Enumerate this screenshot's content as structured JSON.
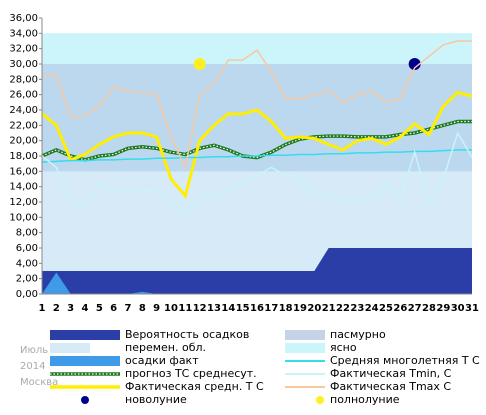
{
  "chart_data": {
    "type": "line",
    "categories": [
      "1",
      "2",
      "3",
      "4",
      "5",
      "6",
      "7",
      "8",
      "9",
      "10",
      "11",
      "12",
      "13",
      "14",
      "15",
      "16",
      "17",
      "18",
      "19",
      "20",
      "21",
      "22",
      "23",
      "24",
      "25",
      "26",
      "27",
      "28",
      "29",
      "30",
      "31"
    ],
    "ylim": [
      0,
      36
    ],
    "yticks": [
      {
        "value": 0,
        "label": "0,00"
      },
      {
        "value": 2,
        "label": "2,00"
      },
      {
        "value": 4,
        "label": "4,00"
      },
      {
        "value": 6,
        "label": "6,00"
      },
      {
        "value": 8,
        "label": "8,00"
      },
      {
        "value": 10,
        "label": "10,00"
      },
      {
        "value": 12,
        "label": "12,00"
      },
      {
        "value": 14,
        "label": "14,00"
      },
      {
        "value": 16,
        "label": "16,00"
      },
      {
        "value": 18,
        "label": "18,00"
      },
      {
        "value": 20,
        "label": "20,00"
      },
      {
        "value": 22,
        "label": "22,00"
      },
      {
        "value": 24,
        "label": "24,00"
      },
      {
        "value": 26,
        "label": "26,00"
      },
      {
        "value": 28,
        "label": "28,00"
      },
      {
        "value": 30,
        "label": "30,00"
      },
      {
        "value": 32,
        "label": "32,00"
      },
      {
        "value": 34,
        "label": "34,00"
      },
      {
        "value": 36,
        "label": "36,00"
      }
    ],
    "month": "Июль",
    "year": "2014",
    "city": "Москва",
    "backgrounds": [
      {
        "name": "пасмурно",
        "color": "#c4d3e8"
      },
      {
        "name": "перемен. обл.",
        "color": "#d6eaf8"
      },
      {
        "name": "ясно",
        "color": "#ccf5fb"
      }
    ],
    "series": [
      {
        "name": "Вероятность осадков",
        "kind": "area",
        "color": "#2b3ea8",
        "values": [
          3,
          3,
          3,
          3,
          3,
          3,
          3,
          3,
          3,
          3,
          3,
          3,
          3,
          3,
          3,
          3,
          3,
          3,
          3,
          3,
          6,
          6,
          6,
          6,
          6,
          6,
          6,
          6,
          6,
          6,
          6
        ]
      },
      {
        "name": "осадки факт",
        "kind": "area",
        "color": "#3f9be8",
        "values": [
          0,
          2.8,
          0,
          0,
          0,
          0,
          0,
          0.3,
          0,
          0,
          0,
          0,
          0,
          0,
          0,
          0,
          0,
          0,
          0,
          0,
          0,
          0,
          0,
          0,
          0,
          0,
          0,
          0,
          0,
          0,
          0
        ]
      },
      {
        "name": "прогноз ТС среднесут.",
        "kind": "dotted",
        "color": "#1e7a1e",
        "values": [
          18,
          18.8,
          18,
          17.5,
          18,
          18.2,
          19,
          19.2,
          19,
          18.5,
          18.2,
          19,
          19.4,
          18.8,
          18,
          17.8,
          18.5,
          19.5,
          20.2,
          20.5,
          20.6,
          20.6,
          20.5,
          20.5,
          20.5,
          20.8,
          21,
          21.5,
          22,
          22.5,
          22.5
        ]
      },
      {
        "name": "Фактическая средн. Т С",
        "kind": "line",
        "width": 3,
        "color": "#ffee00",
        "values": [
          23.5,
          22,
          17.5,
          18.2,
          19.5,
          20.5,
          21,
          21,
          20.5,
          15,
          12.8,
          20,
          22,
          23.5,
          23.5,
          24,
          22.5,
          20.3,
          20.5,
          20.3,
          19.5,
          18.8,
          20,
          20.3,
          19.5,
          20.5,
          22.2,
          20.8,
          24.5,
          26.3,
          25.8
        ]
      },
      {
        "name": "новолуние",
        "kind": "marker",
        "color": "#00008b",
        "values": [
          null,
          null,
          null,
          null,
          null,
          null,
          null,
          null,
          null,
          null,
          null,
          null,
          null,
          null,
          null,
          null,
          null,
          null,
          null,
          null,
          null,
          null,
          null,
          null,
          null,
          null,
          30,
          null,
          null,
          null,
          null
        ]
      },
      {
        "name": "Средняя многолетняя Т С",
        "kind": "line",
        "width": 1.5,
        "color": "#33ddee",
        "values": [
          17.2,
          17.3,
          17.4,
          17.4,
          17.5,
          17.5,
          17.6,
          17.6,
          17.7,
          17.7,
          17.8,
          17.8,
          17.9,
          17.9,
          18,
          18,
          18.1,
          18.1,
          18.2,
          18.2,
          18.3,
          18.3,
          18.4,
          18.4,
          18.5,
          18.5,
          18.6,
          18.6,
          18.7,
          18.8,
          18.8
        ]
      },
      {
        "name": "Фактическая Tmin, C",
        "kind": "line",
        "width": 1.5,
        "color": "#c8f4fa",
        "values": [
          18,
          16.5,
          12,
          11.5,
          14.5,
          13.3,
          13.8,
          13.3,
          13.5,
          12,
          10.5,
          12.8,
          12.8,
          13.5,
          14.5,
          15.5,
          16.5,
          15.5,
          15.3,
          12.8,
          13,
          12.5,
          12,
          12.5,
          14.5,
          12.5,
          18.5,
          11.8,
          15,
          21,
          17.8
        ]
      },
      {
        "name": "Фактическая Tmax C",
        "kind": "line",
        "width": 1.5,
        "color": "#f7c8a0",
        "values": [
          28.5,
          28.5,
          23,
          23.3,
          24.5,
          27,
          26.5,
          26.3,
          26,
          20.5,
          16.5,
          26,
          27.5,
          30.5,
          30.5,
          31.8,
          29,
          25.5,
          25.5,
          26,
          26.5,
          25,
          26,
          26.5,
          25,
          25.5,
          29.5,
          31,
          32.5,
          33,
          33
        ]
      },
      {
        "name": "полнолуние",
        "kind": "marker",
        "color": "#ffee22",
        "values": [
          null,
          null,
          null,
          null,
          null,
          null,
          null,
          null,
          null,
          null,
          null,
          30,
          null,
          null,
          null,
          null,
          null,
          null,
          null,
          null,
          null,
          null,
          null,
          null,
          null,
          null,
          null,
          null,
          null,
          null,
          null
        ]
      }
    ]
  }
}
